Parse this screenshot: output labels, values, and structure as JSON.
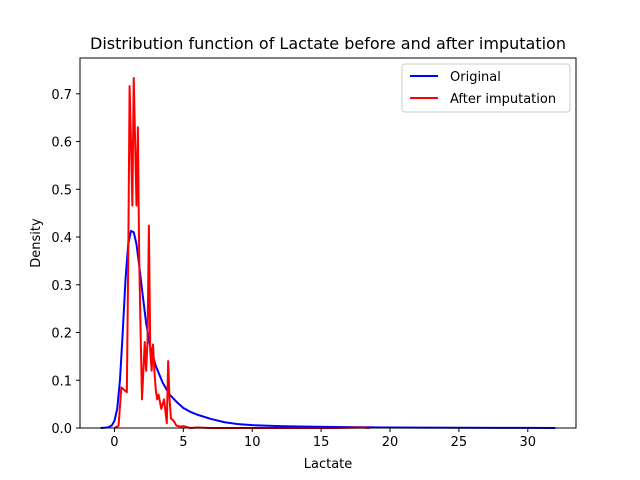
{
  "chart_data": {
    "type": "line",
    "title": "Distribution function of Lactate before and after imputation",
    "xlabel": "Lactate",
    "ylabel": "Density",
    "xlim": [
      -2.5,
      33.5
    ],
    "ylim": [
      0,
      0.775
    ],
    "xticks": [
      0,
      5,
      10,
      15,
      20,
      25,
      30
    ],
    "yticks": [
      0.0,
      0.1,
      0.2,
      0.3,
      0.4,
      0.5,
      0.6,
      0.7
    ],
    "ytick_labels": [
      "0.0",
      "0.1",
      "0.2",
      "0.3",
      "0.4",
      "0.5",
      "0.6",
      "0.7"
    ],
    "legend_position": "upper right",
    "grid": false,
    "series": [
      {
        "name": "Original",
        "color": "#0000ff",
        "x": [
          -1.0,
          -0.5,
          -0.2,
          0.0,
          0.2,
          0.4,
          0.6,
          0.8,
          1.0,
          1.2,
          1.4,
          1.6,
          1.8,
          2.0,
          2.3,
          2.6,
          3.0,
          3.5,
          4.0,
          4.5,
          5.0,
          5.5,
          6.0,
          7.0,
          8.0,
          9.0,
          10.0,
          12.0,
          14.0,
          16.0,
          18.0,
          20.0,
          22.0,
          25.0,
          28.0,
          30.0,
          32.0
        ],
        "y": [
          0.0,
          0.001,
          0.005,
          0.015,
          0.04,
          0.1,
          0.2,
          0.31,
          0.385,
          0.413,
          0.41,
          0.385,
          0.34,
          0.29,
          0.22,
          0.17,
          0.13,
          0.095,
          0.07,
          0.055,
          0.042,
          0.034,
          0.028,
          0.019,
          0.012,
          0.008,
          0.006,
          0.004,
          0.003,
          0.002,
          0.0015,
          0.001,
          0.0008,
          0.0005,
          0.0003,
          0.0002,
          0.0
        ]
      },
      {
        "name": "After imputation",
        "color": "#ff0000",
        "x": [
          0.0,
          0.3,
          0.5,
          0.7,
          0.9,
          1.0,
          1.1,
          1.2,
          1.3,
          1.4,
          1.5,
          1.6,
          1.7,
          1.8,
          1.9,
          2.0,
          2.1,
          2.2,
          2.3,
          2.4,
          2.5,
          2.6,
          2.7,
          2.8,
          2.9,
          3.0,
          3.1,
          3.2,
          3.4,
          3.6,
          3.8,
          3.9,
          4.0,
          4.1,
          4.3,
          4.5,
          4.8,
          5.0,
          5.5,
          6.0,
          7.0,
          8.0,
          10.0,
          12.0,
          14.0,
          16.0,
          18.0,
          18.5
        ],
        "y": [
          0.0,
          0.005,
          0.085,
          0.08,
          0.075,
          0.35,
          0.716,
          0.6,
          0.466,
          0.733,
          0.6,
          0.466,
          0.63,
          0.35,
          0.2,
          0.06,
          0.12,
          0.18,
          0.12,
          0.18,
          0.424,
          0.16,
          0.12,
          0.175,
          0.12,
          0.08,
          0.06,
          0.07,
          0.04,
          0.06,
          0.01,
          0.14,
          0.06,
          0.02,
          0.015,
          0.005,
          0.003,
          0.004,
          0.0,
          0.001,
          0.0,
          0.0,
          0.0,
          0.0,
          0.0,
          0.0,
          0.001,
          0.0
        ]
      }
    ]
  }
}
